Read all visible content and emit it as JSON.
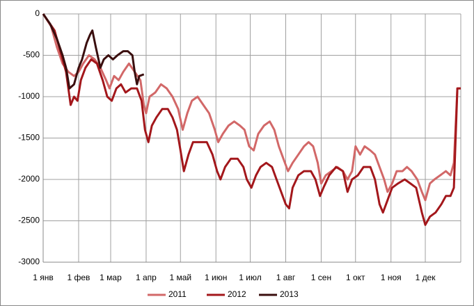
{
  "chart_data": {
    "type": "line",
    "xlim": [
      0,
      365
    ],
    "xticks": [
      {
        "value": 0,
        "label": "1 янв"
      },
      {
        "value": 31,
        "label": "1 фев"
      },
      {
        "value": 59,
        "label": "1 мар"
      },
      {
        "value": 90,
        "label": "1 апр"
      },
      {
        "value": 120,
        "label": "1 май"
      },
      {
        "value": 151,
        "label": "1 июн"
      },
      {
        "value": 181,
        "label": "1 июл"
      },
      {
        "value": 212,
        "label": "1 авг"
      },
      {
        "value": 243,
        "label": "1 сен"
      },
      {
        "value": 273,
        "label": "1 окт"
      },
      {
        "value": 304,
        "label": "1 ноя"
      },
      {
        "value": 334,
        "label": "1 дек"
      }
    ],
    "ylim": [
      -3000,
      0
    ],
    "yticks": [
      0,
      -500,
      -1000,
      -1500,
      -2000,
      -2500,
      -3000
    ],
    "grid": true,
    "series": [
      {
        "name": "2011",
        "color": "#d26868",
        "x": [
          0,
          7,
          12,
          17,
          22,
          27,
          31,
          35,
          40,
          45,
          50,
          55,
          58,
          62,
          66,
          70,
          75,
          80,
          85,
          88,
          90,
          93,
          98,
          103,
          108,
          113,
          118,
          122,
          126,
          130,
          135,
          140,
          145,
          150,
          153,
          157,
          162,
          167,
          172,
          176,
          180,
          184,
          188,
          193,
          198,
          202,
          206,
          210,
          214,
          218,
          223,
          228,
          232,
          236,
          240,
          243,
          247,
          252,
          257,
          262,
          266,
          270,
          273,
          277,
          281,
          286,
          290,
          294,
          298,
          301,
          305,
          309,
          314,
          318,
          322,
          327,
          331,
          334,
          338,
          342,
          347,
          352,
          356,
          359,
          362,
          365
        ],
        "values": [
          0,
          -150,
          -400,
          -600,
          -700,
          -750,
          -700,
          -600,
          -500,
          -550,
          -650,
          -800,
          -900,
          -750,
          -800,
          -700,
          -600,
          -700,
          -800,
          -1100,
          -1200,
          -1000,
          -950,
          -850,
          -900,
          -1000,
          -1150,
          -1400,
          -1200,
          -1050,
          -1000,
          -1100,
          -1200,
          -1400,
          -1550,
          -1450,
          -1350,
          -1300,
          -1350,
          -1400,
          -1600,
          -1650,
          -1450,
          -1350,
          -1300,
          -1400,
          -1600,
          -1750,
          -1900,
          -1800,
          -1700,
          -1600,
          -1550,
          -1600,
          -1800,
          -2050,
          -1950,
          -1900,
          -1850,
          -1900,
          -2000,
          -1900,
          -1600,
          -1700,
          -1600,
          -1650,
          -1700,
          -1850,
          -2000,
          -2150,
          -2050,
          -1900,
          -1900,
          -1850,
          -1900,
          -2000,
          -2150,
          -2250,
          -2050,
          -2000,
          -1950,
          -1900,
          -1950,
          -1800,
          -900,
          -900
        ]
      },
      {
        "name": "2012",
        "color": "#a3171b",
        "x": [
          0,
          10,
          16,
          20,
          24,
          27,
          30,
          33,
          37,
          42,
          47,
          52,
          56,
          60,
          64,
          68,
          72,
          77,
          82,
          86,
          89,
          92,
          95,
          99,
          104,
          109,
          113,
          117,
          120,
          123,
          127,
          131,
          137,
          143,
          148,
          152,
          155,
          159,
          164,
          170,
          175,
          178,
          182,
          186,
          190,
          195,
          200,
          204,
          208,
          212,
          215,
          218,
          223,
          228,
          234,
          238,
          242,
          245,
          250,
          256,
          262,
          266,
          270,
          275,
          280,
          286,
          290,
          294,
          297,
          301,
          305,
          310,
          316,
          321,
          326,
          331,
          334,
          338,
          343,
          348,
          352,
          356,
          359,
          362,
          365
        ],
        "values": [
          0,
          -200,
          -500,
          -700,
          -1100,
          -1000,
          -1050,
          -800,
          -650,
          -550,
          -600,
          -800,
          -1000,
          -1050,
          -900,
          -850,
          -950,
          -900,
          -900,
          -1050,
          -1400,
          -1550,
          -1350,
          -1250,
          -1150,
          -1150,
          -1250,
          -1400,
          -1650,
          -1900,
          -1700,
          -1550,
          -1550,
          -1550,
          -1700,
          -1900,
          -2000,
          -1850,
          -1750,
          -1750,
          -1850,
          -2000,
          -2100,
          -1950,
          -1850,
          -1800,
          -1850,
          -2000,
          -2150,
          -2300,
          -2350,
          -2100,
          -1950,
          -1900,
          -1900,
          -2000,
          -2200,
          -2100,
          -1950,
          -1850,
          -1900,
          -2150,
          -2000,
          -1950,
          -1850,
          -1850,
          -2000,
          -2300,
          -2400,
          -2250,
          -2100,
          -2050,
          -2000,
          -2050,
          -2100,
          -2400,
          -2550,
          -2450,
          -2400,
          -2300,
          -2200,
          -2200,
          -2100,
          -900,
          -900
        ]
      },
      {
        "name": "2013",
        "color": "#3a0e0e",
        "x": [
          0,
          6,
          12,
          17,
          20,
          23,
          27,
          31,
          34,
          38,
          41,
          43,
          46,
          50,
          53,
          57,
          61,
          65,
          70,
          74,
          78,
          80,
          82,
          84,
          88
        ],
        "values": [
          0,
          -120,
          -300,
          -500,
          -650,
          -900,
          -850,
          -650,
          -550,
          -350,
          -250,
          -200,
          -400,
          -650,
          -550,
          -500,
          -550,
          -500,
          -450,
          -450,
          -500,
          -700,
          -850,
          -750,
          -730
        ]
      }
    ]
  }
}
